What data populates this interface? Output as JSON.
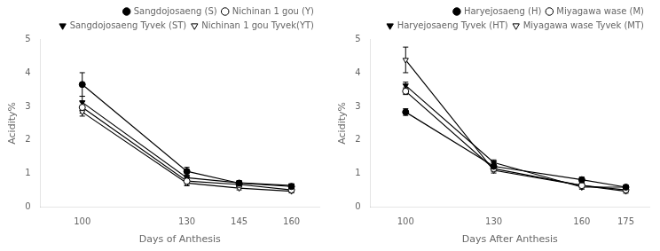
{
  "chart_data": [
    {
      "type": "line",
      "xlabel": "Days of Anthesis",
      "ylabel": "Acidity%",
      "x": [
        100,
        130,
        145,
        160
      ],
      "xlim": [
        88,
        168
      ],
      "xticks": [
        100,
        130,
        145,
        160
      ],
      "ylim": [
        0,
        5
      ],
      "yticks": [
        0,
        1,
        2,
        3,
        4,
        5
      ],
      "grid": false,
      "legend": "upper right",
      "series": [
        {
          "name": "Sangdojosaeng (S)",
          "values": [
            3.65,
            1.07,
            0.72,
            0.62
          ],
          "errors": [
            0.35,
            0.12,
            0.07,
            0.07
          ],
          "marker": "circle",
          "color": "black",
          "line_style": "solid"
        },
        {
          "name": "Nichinan 1 gou (Y)",
          "values": [
            2.97,
            0.78,
            0.68,
            0.52
          ],
          "errors": [
            0.17,
            0.1,
            0.05,
            0.06
          ],
          "marker": "circle-open",
          "color": "black",
          "line_style": "solid"
        },
        {
          "name": "Sangdojosaeng Tyvek (ST)",
          "values": [
            3.12,
            0.88,
            0.73,
            0.65
          ],
          "errors": [
            0.18,
            0.08,
            0.06,
            0.05
          ],
          "marker": "triangle-down",
          "color": "black",
          "line_style": "solid"
        },
        {
          "name": "Nichinan 1 gou Tyvek(YT)",
          "values": [
            2.83,
            0.72,
            0.57,
            0.48
          ],
          "errors": [
            0.12,
            0.08,
            0.05,
            0.05
          ],
          "marker": "triangle-down-open",
          "color": "black",
          "line_style": "solid"
        }
      ]
    },
    {
      "type": "line",
      "xlabel": "Days After Anthesis",
      "ylabel": "Acidity%",
      "x": [
        100,
        130,
        160,
        175
      ],
      "xlim": [
        88,
        183
      ],
      "xticks": [
        100,
        130,
        160,
        175
      ],
      "ylim": [
        0,
        5
      ],
      "yticks": [
        0,
        1,
        2,
        3,
        4,
        5
      ],
      "grid": false,
      "legend": "upper right",
      "series": [
        {
          "name": "Haryejosaeng (H)",
          "values": [
            2.83,
            1.22,
            0.82,
            0.6
          ],
          "errors": [
            0.1,
            0.1,
            0.08,
            0.05
          ],
          "marker": "circle",
          "color": "black",
          "line_style": "solid"
        },
        {
          "name": "Miyagawa wase (M)",
          "values": [
            3.45,
            1.15,
            0.65,
            0.52
          ],
          "errors": [
            0.1,
            0.08,
            0.07,
            0.05
          ],
          "marker": "circle-open",
          "color": "black",
          "line_style": "solid"
        },
        {
          "name": "Haryejosaeng Tyvek (HT)",
          "values": [
            3.62,
            1.33,
            0.6,
            0.6
          ],
          "errors": [
            0.1,
            0.08,
            0.06,
            0.05
          ],
          "marker": "triangle-down",
          "color": "black",
          "line_style": "solid"
        },
        {
          "name": "Miyagawa wase Tyvek (MT)",
          "values": [
            4.38,
            1.1,
            0.65,
            0.48
          ],
          "errors": [
            0.38,
            0.08,
            0.07,
            0.06
          ],
          "marker": "triangle-down-open",
          "color": "black",
          "line_style": "solid"
        }
      ]
    }
  ]
}
